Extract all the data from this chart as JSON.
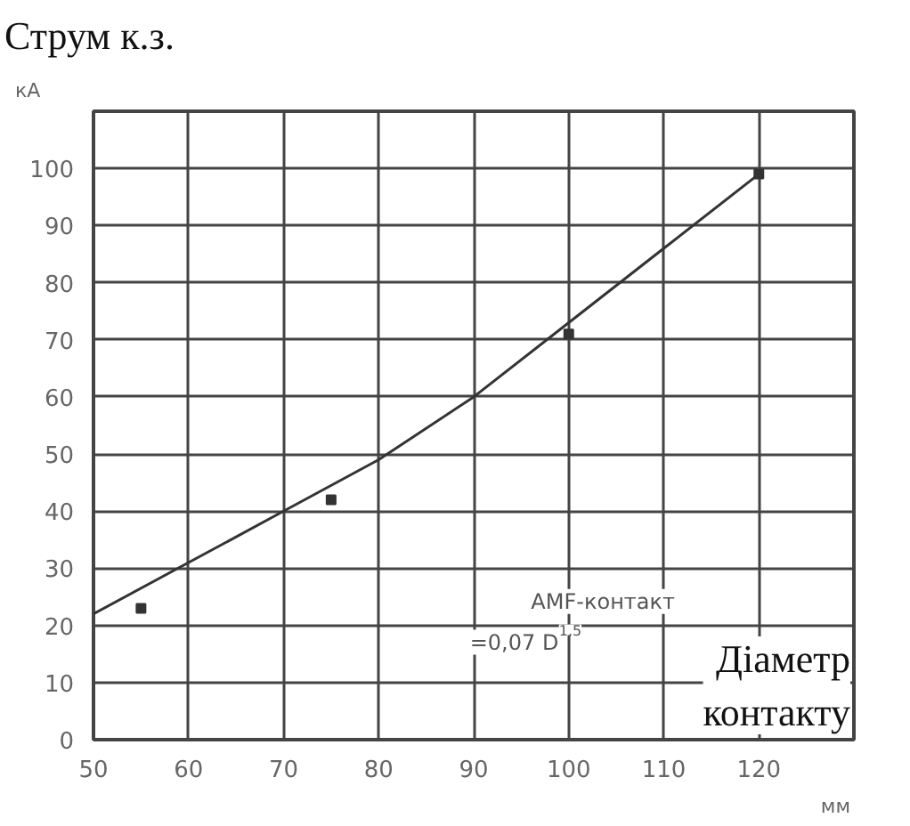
{
  "chart_data": {
    "type": "line",
    "title": "Струм к.з.",
    "ylabel": "кА",
    "xlabel": "Діаметр контакту",
    "xlim": [
      50,
      130
    ],
    "ylim": [
      0,
      110
    ],
    "xticks": [
      50,
      60,
      70,
      80,
      90,
      100,
      110,
      120
    ],
    "yticks": [
      0,
      10,
      20,
      30,
      40,
      50,
      60,
      70,
      80,
      90,
      100
    ],
    "grid": true,
    "series": [
      {
        "color": "#333333",
        "x": [
          50,
          60,
          70,
          80,
          90,
          100,
          110,
          120
        ],
        "values": [
          22,
          31,
          40,
          49,
          60,
          73,
          86,
          99
        ]
      },
      {
        "type": "scatter",
        "marker": "square",
        "color": "#333333",
        "x": [
          55,
          75,
          100,
          120
        ],
        "values": [
          23,
          42,
          71,
          99
        ]
      }
    ],
    "annotations": [
      "мм",
      "AMF-контакт",
      "=0,07 D$^{1,5}$"
    ]
  }
}
